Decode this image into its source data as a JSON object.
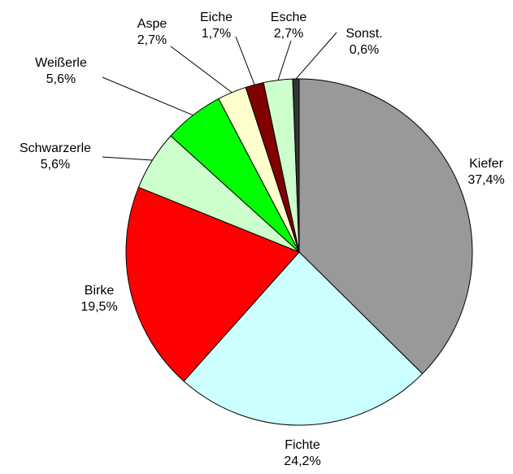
{
  "chart_data": {
    "type": "pie",
    "categories": [
      "Kiefer",
      "Fichte",
      "Birke",
      "Schwarzerle",
      "Weißerle",
      "Aspe",
      "Eiche",
      "Esche",
      "Sonst."
    ],
    "values": [
      37.4,
      24.2,
      19.5,
      5.6,
      5.6,
      2.7,
      1.7,
      2.7,
      0.6
    ],
    "value_labels": [
      "37,4%",
      "24,2%",
      "19,5%",
      "5,6%",
      "5,6%",
      "2,7%",
      "1,7%",
      "2,7%",
      "0,6%"
    ],
    "colors": [
      "#999999",
      "#ccffff",
      "#ff0000",
      "#ccffcc",
      "#00ff00",
      "#ffffcc",
      "#800000",
      "#ccffcc",
      "#333333"
    ]
  }
}
